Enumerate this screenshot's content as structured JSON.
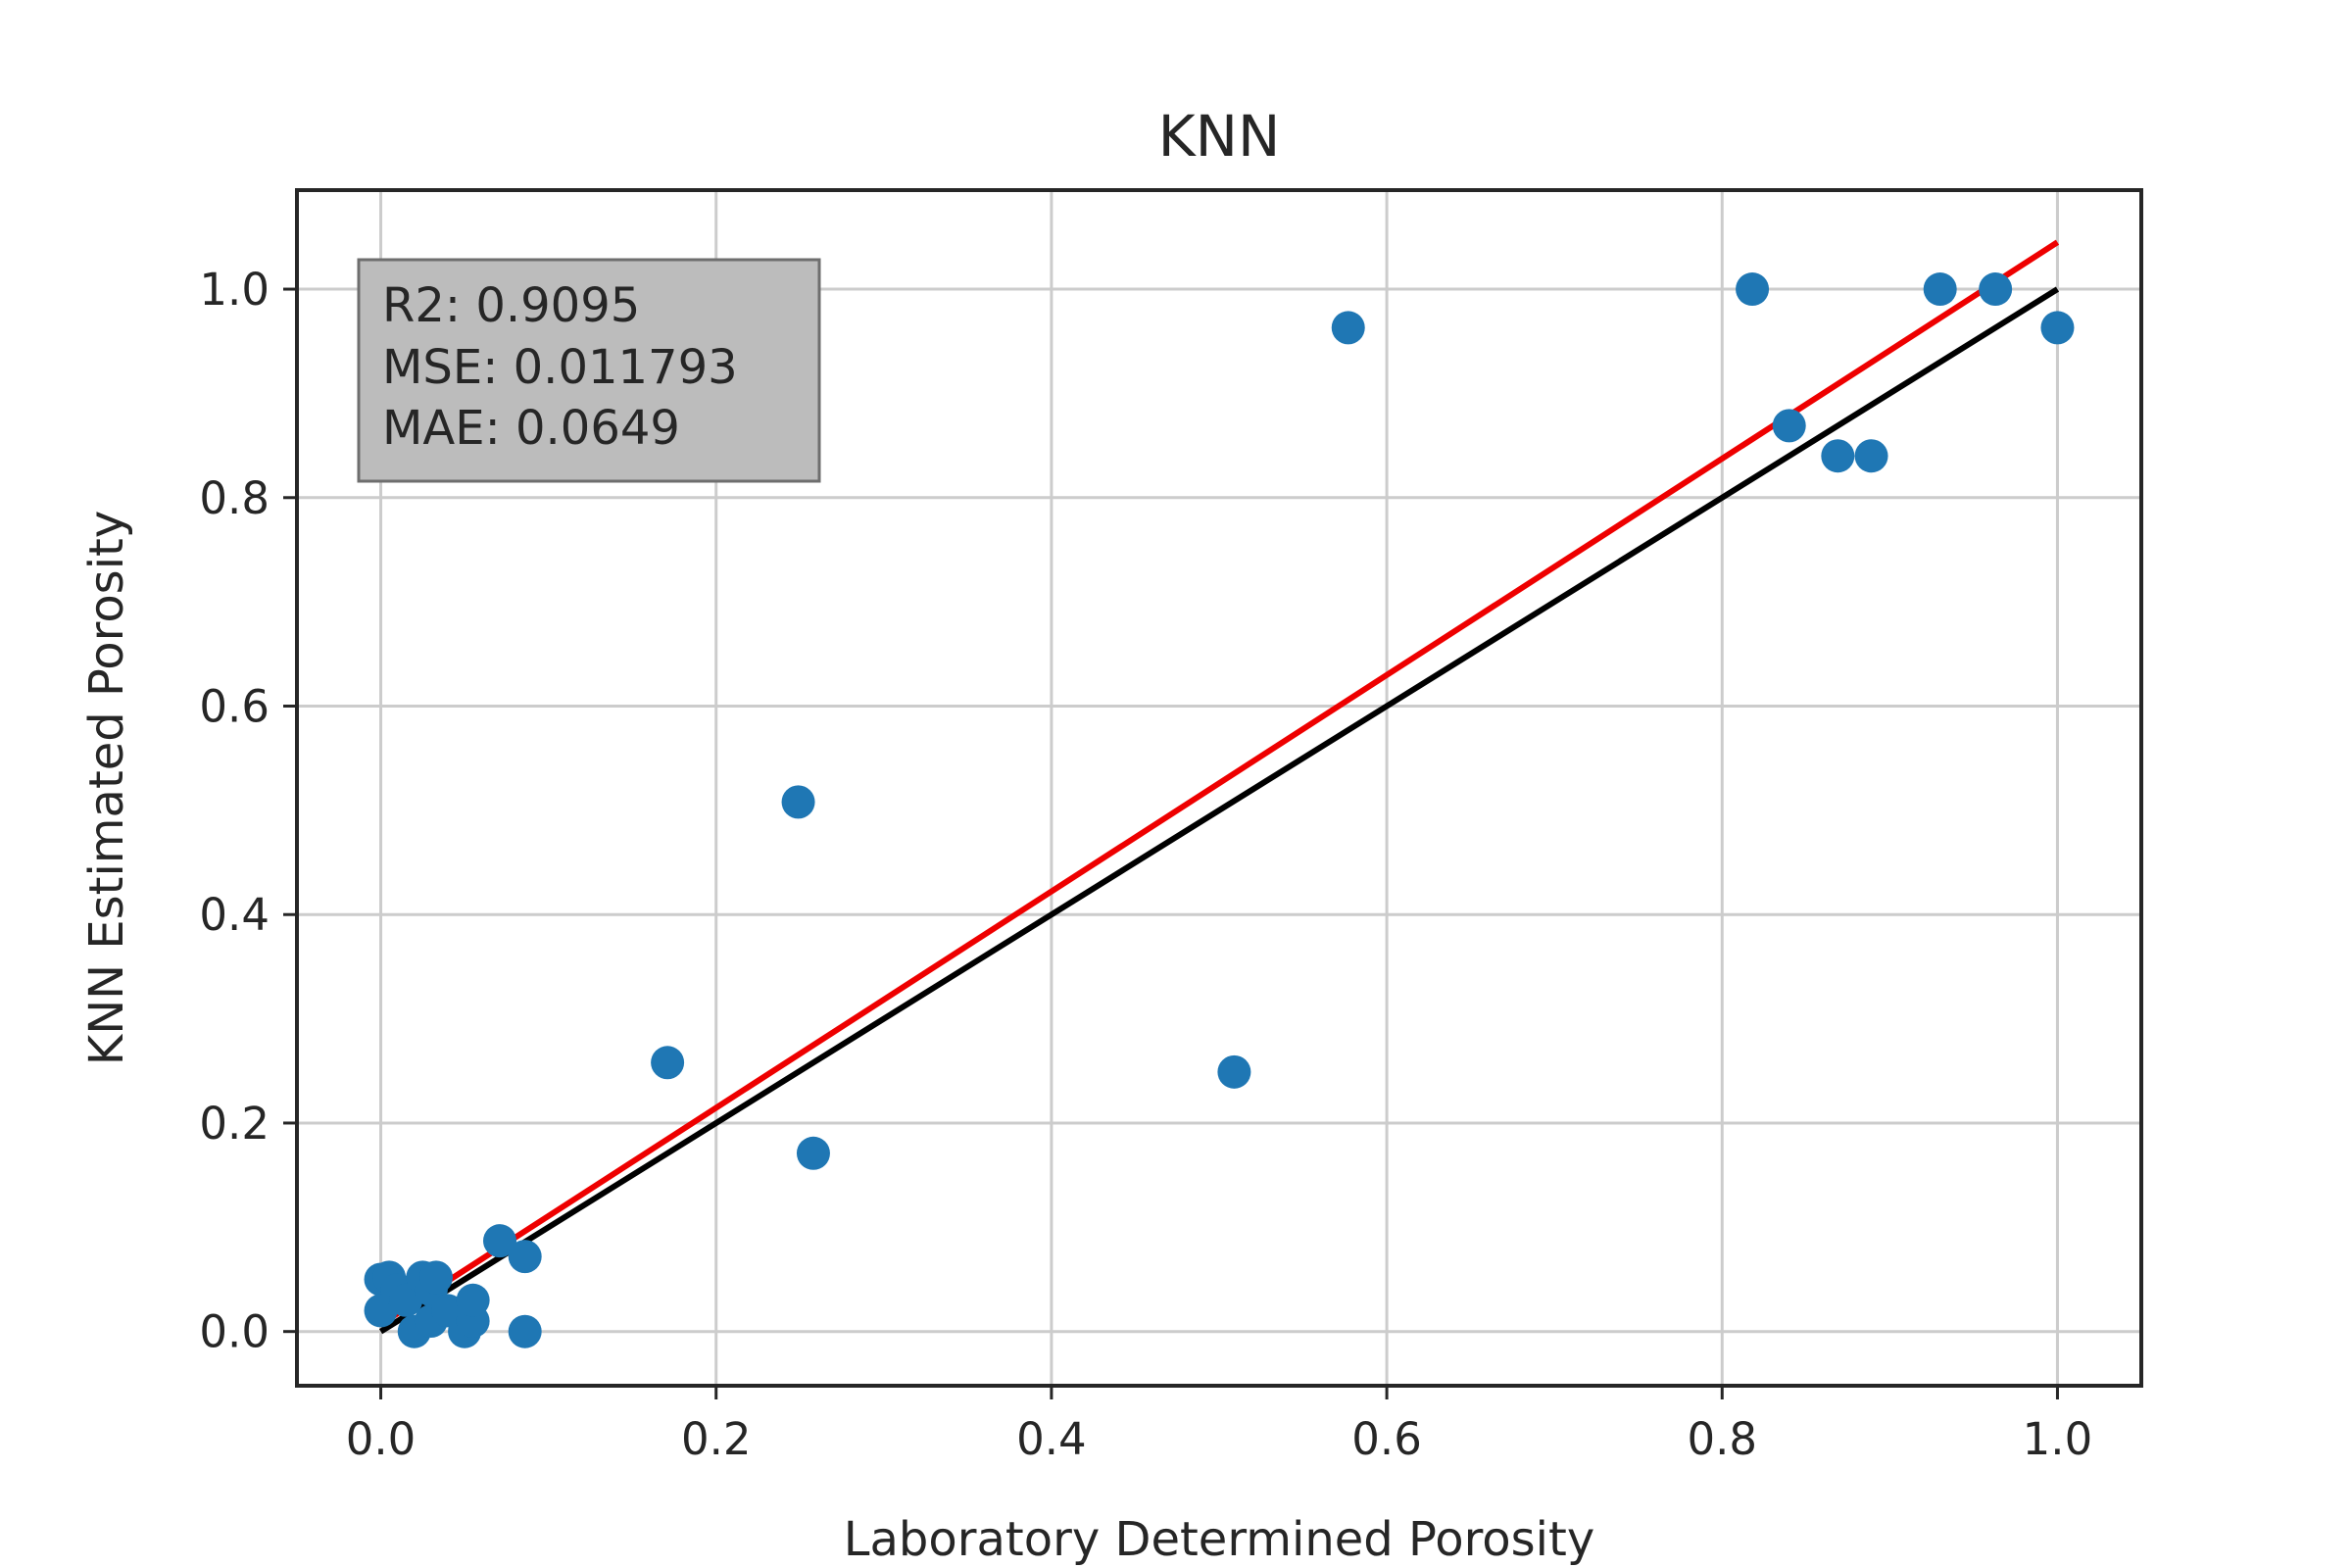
{
  "chart_data": {
    "type": "scatter",
    "title": "KNN",
    "xlabel": "Laboratory Determined Porosity",
    "ylabel": "KNN Estimated Porosity",
    "xlim": [
      -0.05,
      1.05
    ],
    "ylim": [
      -0.052,
      1.095
    ],
    "xticks": [
      "0.0",
      "0.2",
      "0.4",
      "0.6",
      "0.8",
      "1.0"
    ],
    "yticks": [
      "0.0",
      "0.2",
      "0.4",
      "0.6",
      "0.8",
      "1.0"
    ],
    "xtick_values": [
      0.0,
      0.2,
      0.4,
      0.6,
      0.8,
      1.0
    ],
    "ytick_values": [
      0.0,
      0.2,
      0.4,
      0.6,
      0.8,
      1.0
    ],
    "grid": true,
    "stats": [
      "R2: 0.9095",
      "MSE: 0.011793",
      "MAE: 0.0649"
    ],
    "points": [
      {
        "x": 0.0,
        "y": 0.05
      },
      {
        "x": 0.005,
        "y": 0.052
      },
      {
        "x": 0.0,
        "y": 0.02
      },
      {
        "x": 0.01,
        "y": 0.04
      },
      {
        "x": 0.015,
        "y": 0.03
      },
      {
        "x": 0.02,
        "y": 0.0
      },
      {
        "x": 0.025,
        "y": 0.052
      },
      {
        "x": 0.03,
        "y": 0.04
      },
      {
        "x": 0.033,
        "y": 0.052
      },
      {
        "x": 0.03,
        "y": 0.01
      },
      {
        "x": 0.04,
        "y": 0.02
      },
      {
        "x": 0.05,
        "y": 0.0
      },
      {
        "x": 0.055,
        "y": 0.01
      },
      {
        "x": 0.055,
        "y": 0.03
      },
      {
        "x": 0.071,
        "y": 0.087
      },
      {
        "x": 0.086,
        "y": 0.072
      },
      {
        "x": 0.086,
        "y": 0.0
      },
      {
        "x": 0.171,
        "y": 0.258
      },
      {
        "x": 0.249,
        "y": 0.508
      },
      {
        "x": 0.258,
        "y": 0.171
      },
      {
        "x": 0.509,
        "y": 0.249
      },
      {
        "x": 0.577,
        "y": 0.963
      },
      {
        "x": 0.818,
        "y": 1.0
      },
      {
        "x": 0.84,
        "y": 0.869
      },
      {
        "x": 0.869,
        "y": 0.84
      },
      {
        "x": 0.889,
        "y": 0.84
      },
      {
        "x": 0.93,
        "y": 1.0
      },
      {
        "x": 0.963,
        "y": 1.0
      },
      {
        "x": 1.0,
        "y": 0.963
      }
    ],
    "lines": [
      {
        "x": [
          0.0,
          1.0
        ],
        "y": [
          0.0,
          1.0
        ],
        "color": "#000000"
      },
      {
        "x": [
          0.0,
          1.0
        ],
        "y": [
          0.007,
          1.045
        ],
        "color": "#ee0000"
      }
    ],
    "point_color": "#1f77b4",
    "stats_box_color": "#bcbcbc"
  }
}
